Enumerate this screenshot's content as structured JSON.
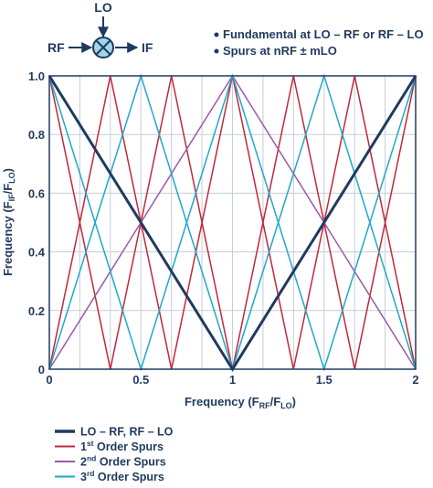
{
  "mixer": {
    "lo_label": "LO",
    "rf_label": "RF",
    "if_label": "IF"
  },
  "notes": [
    "Fundamental at LO – RF or RF – LO",
    "Spurs at nRF ± mLO"
  ],
  "chart_data": {
    "type": "line",
    "xlabel": {
      "main": "Frequency (F",
      "sub1": "RF",
      "mid": "/F",
      "sub2": "LO",
      "end": ")"
    },
    "ylabel": {
      "main": "Frequency (F",
      "sub1": "IF",
      "mid": "/F",
      "sub2": "LO",
      "end": ")"
    },
    "xlim": [
      0,
      2
    ],
    "ylim": [
      0,
      1
    ],
    "x_ticks": [
      {
        "value": 0,
        "label": "0"
      },
      {
        "value": 0.5,
        "label": "0.5"
      },
      {
        "value": 1,
        "label": "1"
      },
      {
        "value": 1.5,
        "label": "1.5"
      },
      {
        "value": 2,
        "label": "2"
      }
    ],
    "y_ticks": [
      {
        "value": 0,
        "label": "0"
      },
      {
        "value": 0.2,
        "label": "0.2"
      },
      {
        "value": 0.4,
        "label": "0.4"
      },
      {
        "value": 0.6,
        "label": "0.6"
      },
      {
        "value": 0.8,
        "label": "0.8"
      },
      {
        "value": 1,
        "label": "1.0"
      }
    ],
    "grid": true,
    "grid_x_step": 0.1667,
    "grid_y_step": 0.2,
    "legend_position": "bottom-left",
    "series": [
      {
        "name": "LO – RF, RF – LO",
        "color": "#1f3a5f",
        "width": 3,
        "legend_sup": "",
        "legend_rest": "",
        "lines": [
          {
            "x": [
              0,
              1,
              2
            ],
            "y": [
              1,
              0,
              1
            ]
          }
        ]
      },
      {
        "name": "1",
        "legend_sup": "st",
        "legend_rest": " Order Spurs",
        "color": "#c0283a",
        "width": 1.5,
        "lines": [
          {
            "x": [
              0,
              0.333,
              0.667,
              1,
              1.333,
              1.667,
              2
            ],
            "y": [
              0,
              1,
              0,
              1,
              0,
              1,
              0
            ]
          },
          {
            "x": [
              0,
              0.333,
              0.667,
              1,
              1.333,
              1.667,
              2
            ],
            "y": [
              1,
              0,
              1,
              0,
              1,
              0,
              1
            ]
          }
        ]
      },
      {
        "name": "2",
        "legend_sup": "nd",
        "legend_rest": " Order Spurs",
        "color": "#9b59a8",
        "width": 1.5,
        "lines": [
          {
            "x": [
              0,
              1,
              2
            ],
            "y": [
              0,
              1,
              0
            ]
          }
        ]
      },
      {
        "name": "3",
        "legend_sup": "rd",
        "legend_rest": " Order Spurs",
        "color": "#1fa8c9",
        "width": 1.5,
        "lines": [
          {
            "x": [
              0,
              0.5,
              1,
              1.5,
              2
            ],
            "y": [
              0,
              1,
              0,
              1,
              0
            ]
          },
          {
            "x": [
              0,
              0.5,
              1,
              1.5,
              2
            ],
            "y": [
              1,
              0,
              1,
              0,
              1
            ]
          }
        ]
      }
    ]
  }
}
